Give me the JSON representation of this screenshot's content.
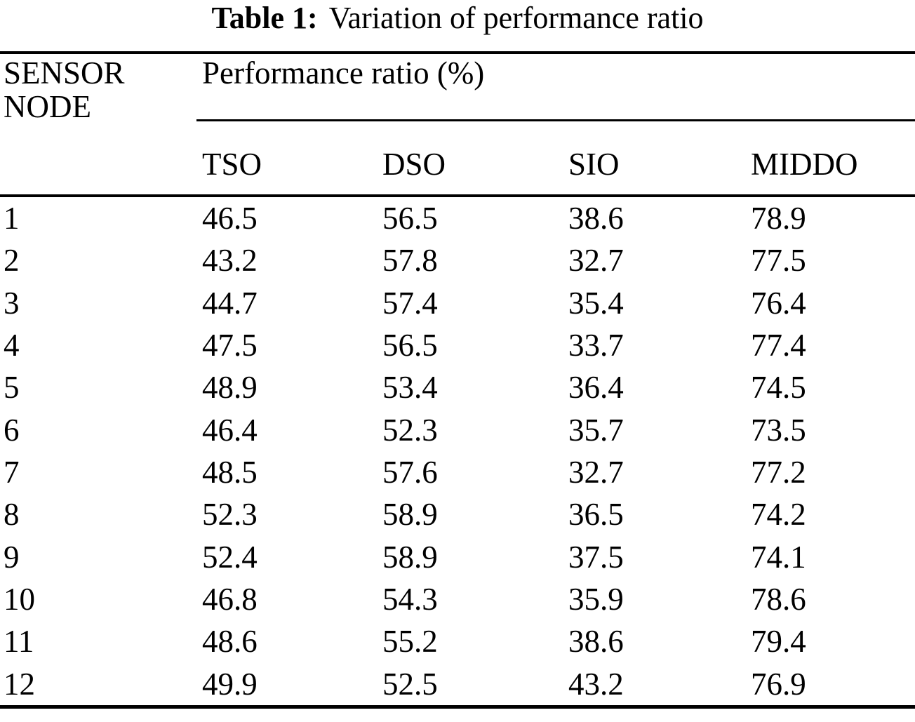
{
  "caption": {
    "label": "Table 1:",
    "title": "Variation of performance ratio"
  },
  "table": {
    "row_header": "SENSOR NODE",
    "group_header": "Performance ratio (%)",
    "columns": [
      "TSO",
      "DSO",
      "SIO",
      "MIDDO"
    ],
    "rows": [
      {
        "node": "1",
        "values": [
          "46.5",
          "56.5",
          "38.6",
          "78.9"
        ]
      },
      {
        "node": "2",
        "values": [
          "43.2",
          "57.8",
          "32.7",
          "77.5"
        ]
      },
      {
        "node": "3",
        "values": [
          "44.7",
          "57.4",
          "35.4",
          "76.4"
        ]
      },
      {
        "node": "4",
        "values": [
          "47.5",
          "56.5",
          "33.7",
          "77.4"
        ]
      },
      {
        "node": "5",
        "values": [
          "48.9",
          "53.4",
          "36.4",
          "74.5"
        ]
      },
      {
        "node": "6",
        "values": [
          "46.4",
          "52.3",
          "35.7",
          "73.5"
        ]
      },
      {
        "node": "7",
        "values": [
          "48.5",
          "57.6",
          "32.7",
          "77.2"
        ]
      },
      {
        "node": "8",
        "values": [
          "52.3",
          "58.9",
          "36.5",
          "74.2"
        ]
      },
      {
        "node": "9",
        "values": [
          "52.4",
          "58.9",
          "37.5",
          "74.1"
        ]
      },
      {
        "node": "10",
        "values": [
          "46.8",
          "54.3",
          "35.9",
          "78.6"
        ]
      },
      {
        "node": "11",
        "values": [
          "48.6",
          "55.2",
          "38.6",
          "79.4"
        ]
      },
      {
        "node": "12",
        "values": [
          "49.9",
          "52.5",
          "43.2",
          "76.9"
        ]
      }
    ]
  },
  "colors": {
    "text": "#000000",
    "background": "#ffffff",
    "rule": "#000000"
  }
}
